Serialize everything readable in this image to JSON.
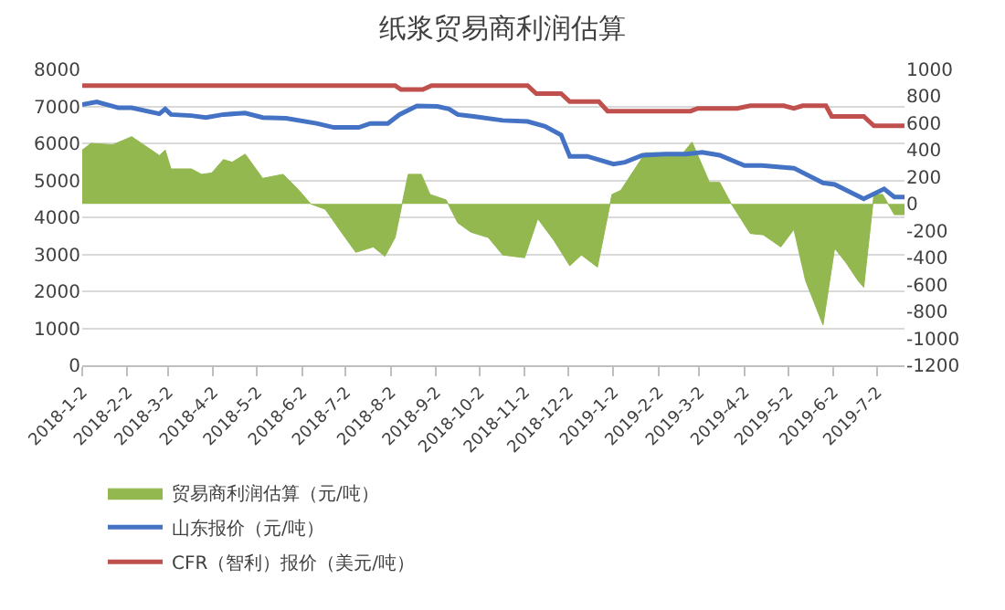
{
  "chart_data": {
    "type": "line",
    "title": "纸浆贸易商利润估算",
    "xlim": [
      "2018-01-02",
      "2019-07-21"
    ],
    "xticks": [
      {
        "value": "2018-01-02",
        "label": "2018-1-2"
      },
      {
        "value": "2018-02-02",
        "label": "2018-2-2"
      },
      {
        "value": "2018-03-02",
        "label": "2018-3-2"
      },
      {
        "value": "2018-04-02",
        "label": "2018-4-2"
      },
      {
        "value": "2018-05-02",
        "label": "2018-5-2"
      },
      {
        "value": "2018-06-02",
        "label": "2018-6-2"
      },
      {
        "value": "2018-07-02",
        "label": "2018-7-2"
      },
      {
        "value": "2018-08-02",
        "label": "2018-8-2"
      },
      {
        "value": "2018-09-02",
        "label": "2018-9-2"
      },
      {
        "value": "2018-10-02",
        "label": "2018-10-2"
      },
      {
        "value": "2018-11-02",
        "label": "2018-11-2"
      },
      {
        "value": "2018-12-02",
        "label": "2018-12-2"
      },
      {
        "value": "2019-01-02",
        "label": "2019-1-2"
      },
      {
        "value": "2019-02-02",
        "label": "2019-2-2"
      },
      {
        "value": "2019-03-02",
        "label": "2019-3-2"
      },
      {
        "value": "2019-04-02",
        "label": "2019-4-2"
      },
      {
        "value": "2019-05-02",
        "label": "2019-5-2"
      },
      {
        "value": "2019-06-02",
        "label": "2019-6-2"
      },
      {
        "value": "2019-07-02",
        "label": "2019-7-2"
      }
    ],
    "ylim": [
      0,
      8000
    ],
    "yticks": [
      0,
      1000,
      2000,
      3000,
      4000,
      5000,
      6000,
      7000,
      8000
    ],
    "y2lim": [
      -1200,
      1000
    ],
    "y2ticks": [
      -1200,
      -1000,
      -800,
      -600,
      -400,
      -200,
      0,
      200,
      400,
      600,
      800,
      1000
    ],
    "grid": "y",
    "legend": "bottom",
    "series": [
      {
        "name": "贸易商利润估算（元/吨）",
        "type": "area",
        "axis": "y2",
        "color": "#92b84f",
        "x": [
          "2018-01-02",
          "2018-01-08",
          "2018-01-23",
          "2018-02-05",
          "2018-02-24",
          "2018-02-28",
          "2018-03-04",
          "2018-03-18",
          "2018-03-25",
          "2018-04-01",
          "2018-04-09",
          "2018-04-15",
          "2018-04-24",
          "2018-05-06",
          "2018-05-20",
          "2018-05-31",
          "2018-06-08",
          "2018-06-18",
          "2018-06-29",
          "2018-07-09",
          "2018-07-21",
          "2018-07-29",
          "2018-08-05",
          "2018-08-14",
          "2018-08-23",
          "2018-08-29",
          "2018-09-09",
          "2018-09-17",
          "2018-09-26",
          "2018-10-08",
          "2018-10-18",
          "2018-11-02",
          "2018-11-11",
          "2018-11-22",
          "2018-12-03",
          "2018-12-11",
          "2018-12-22",
          "2019-01-01",
          "2019-01-07",
          "2019-01-24",
          "2019-02-07",
          "2019-02-19",
          "2019-02-25",
          "2019-03-09",
          "2019-03-16",
          "2019-03-24",
          "2019-04-06",
          "2019-04-15",
          "2019-04-27",
          "2019-05-06",
          "2019-05-14",
          "2019-05-26",
          "2019-06-03",
          "2019-06-11",
          "2019-06-19",
          "2019-06-23",
          "2019-06-30",
          "2019-07-06",
          "2019-07-14",
          "2019-07-21"
        ],
        "values": [
          400,
          450,
          440,
          500,
          360,
          400,
          260,
          260,
          220,
          230,
          330,
          310,
          370,
          190,
          220,
          100,
          0,
          -40,
          -210,
          -360,
          -320,
          -390,
          -250,
          220,
          220,
          70,
          30,
          -140,
          -210,
          -250,
          -380,
          -400,
          -110,
          -270,
          -460,
          -380,
          -470,
          70,
          100,
          380,
          380,
          380,
          460,
          160,
          160,
          0,
          -220,
          -230,
          -320,
          -190,
          -570,
          -900,
          -330,
          -440,
          -570,
          -620,
          70,
          70,
          -80,
          -80
        ]
      },
      {
        "name": "山东报价（元/吨）",
        "axis": "y",
        "color": "#4472c4",
        "x": [
          "2018-01-02",
          "2018-01-12",
          "2018-01-27",
          "2018-02-05",
          "2018-02-24",
          "2018-02-28",
          "2018-03-04",
          "2018-03-18",
          "2018-03-28",
          "2018-04-09",
          "2018-04-24",
          "2018-05-06",
          "2018-05-22",
          "2018-06-12",
          "2018-06-24",
          "2018-07-11",
          "2018-07-19",
          "2018-07-31",
          "2018-08-08",
          "2018-08-20",
          "2018-09-03",
          "2018-09-11",
          "2018-09-17",
          "2018-09-28",
          "2018-10-18",
          "2018-11-04",
          "2018-11-16",
          "2018-11-27",
          "2018-12-03",
          "2018-12-15",
          "2019-01-02",
          "2019-01-10",
          "2019-01-22",
          "2019-02-07",
          "2019-02-21",
          "2019-03-04",
          "2019-03-16",
          "2019-04-02",
          "2019-04-14",
          "2019-05-06",
          "2019-05-26",
          "2019-06-03",
          "2019-06-23",
          "2019-07-07",
          "2019-07-14",
          "2019-07-21"
        ],
        "values": [
          7050,
          7120,
          6960,
          6960,
          6800,
          6930,
          6780,
          6750,
          6700,
          6780,
          6820,
          6700,
          6680,
          6540,
          6430,
          6430,
          6540,
          6540,
          6780,
          7010,
          7000,
          6930,
          6780,
          6730,
          6620,
          6590,
          6460,
          6230,
          5650,
          5650,
          5440,
          5490,
          5680,
          5710,
          5710,
          5760,
          5680,
          5400,
          5400,
          5330,
          4930,
          4890,
          4500,
          4770,
          4550,
          4550
        ]
      },
      {
        "name": "CFR（智利）报价（美元/吨）",
        "type": "line",
        "axis": "y2",
        "color": "#c0504d",
        "x": [
          "2018-01-02",
          "2018-08-05",
          "2018-08-09",
          "2018-08-24",
          "2018-08-30",
          "2018-11-04",
          "2018-11-10",
          "2018-11-27",
          "2018-12-03",
          "2018-12-23",
          "2018-12-29",
          "2019-02-24",
          "2019-03-01",
          "2019-03-28",
          "2019-04-06",
          "2019-04-29",
          "2019-05-06",
          "2019-05-12",
          "2019-05-28",
          "2019-06-01",
          "2019-06-23",
          "2019-06-30",
          "2019-07-21"
        ],
        "values": [
          880,
          880,
          850,
          850,
          880,
          880,
          820,
          820,
          760,
          760,
          690,
          690,
          710,
          710,
          730,
          730,
          710,
          730,
          730,
          650,
          650,
          580,
          580
        ]
      }
    ]
  }
}
